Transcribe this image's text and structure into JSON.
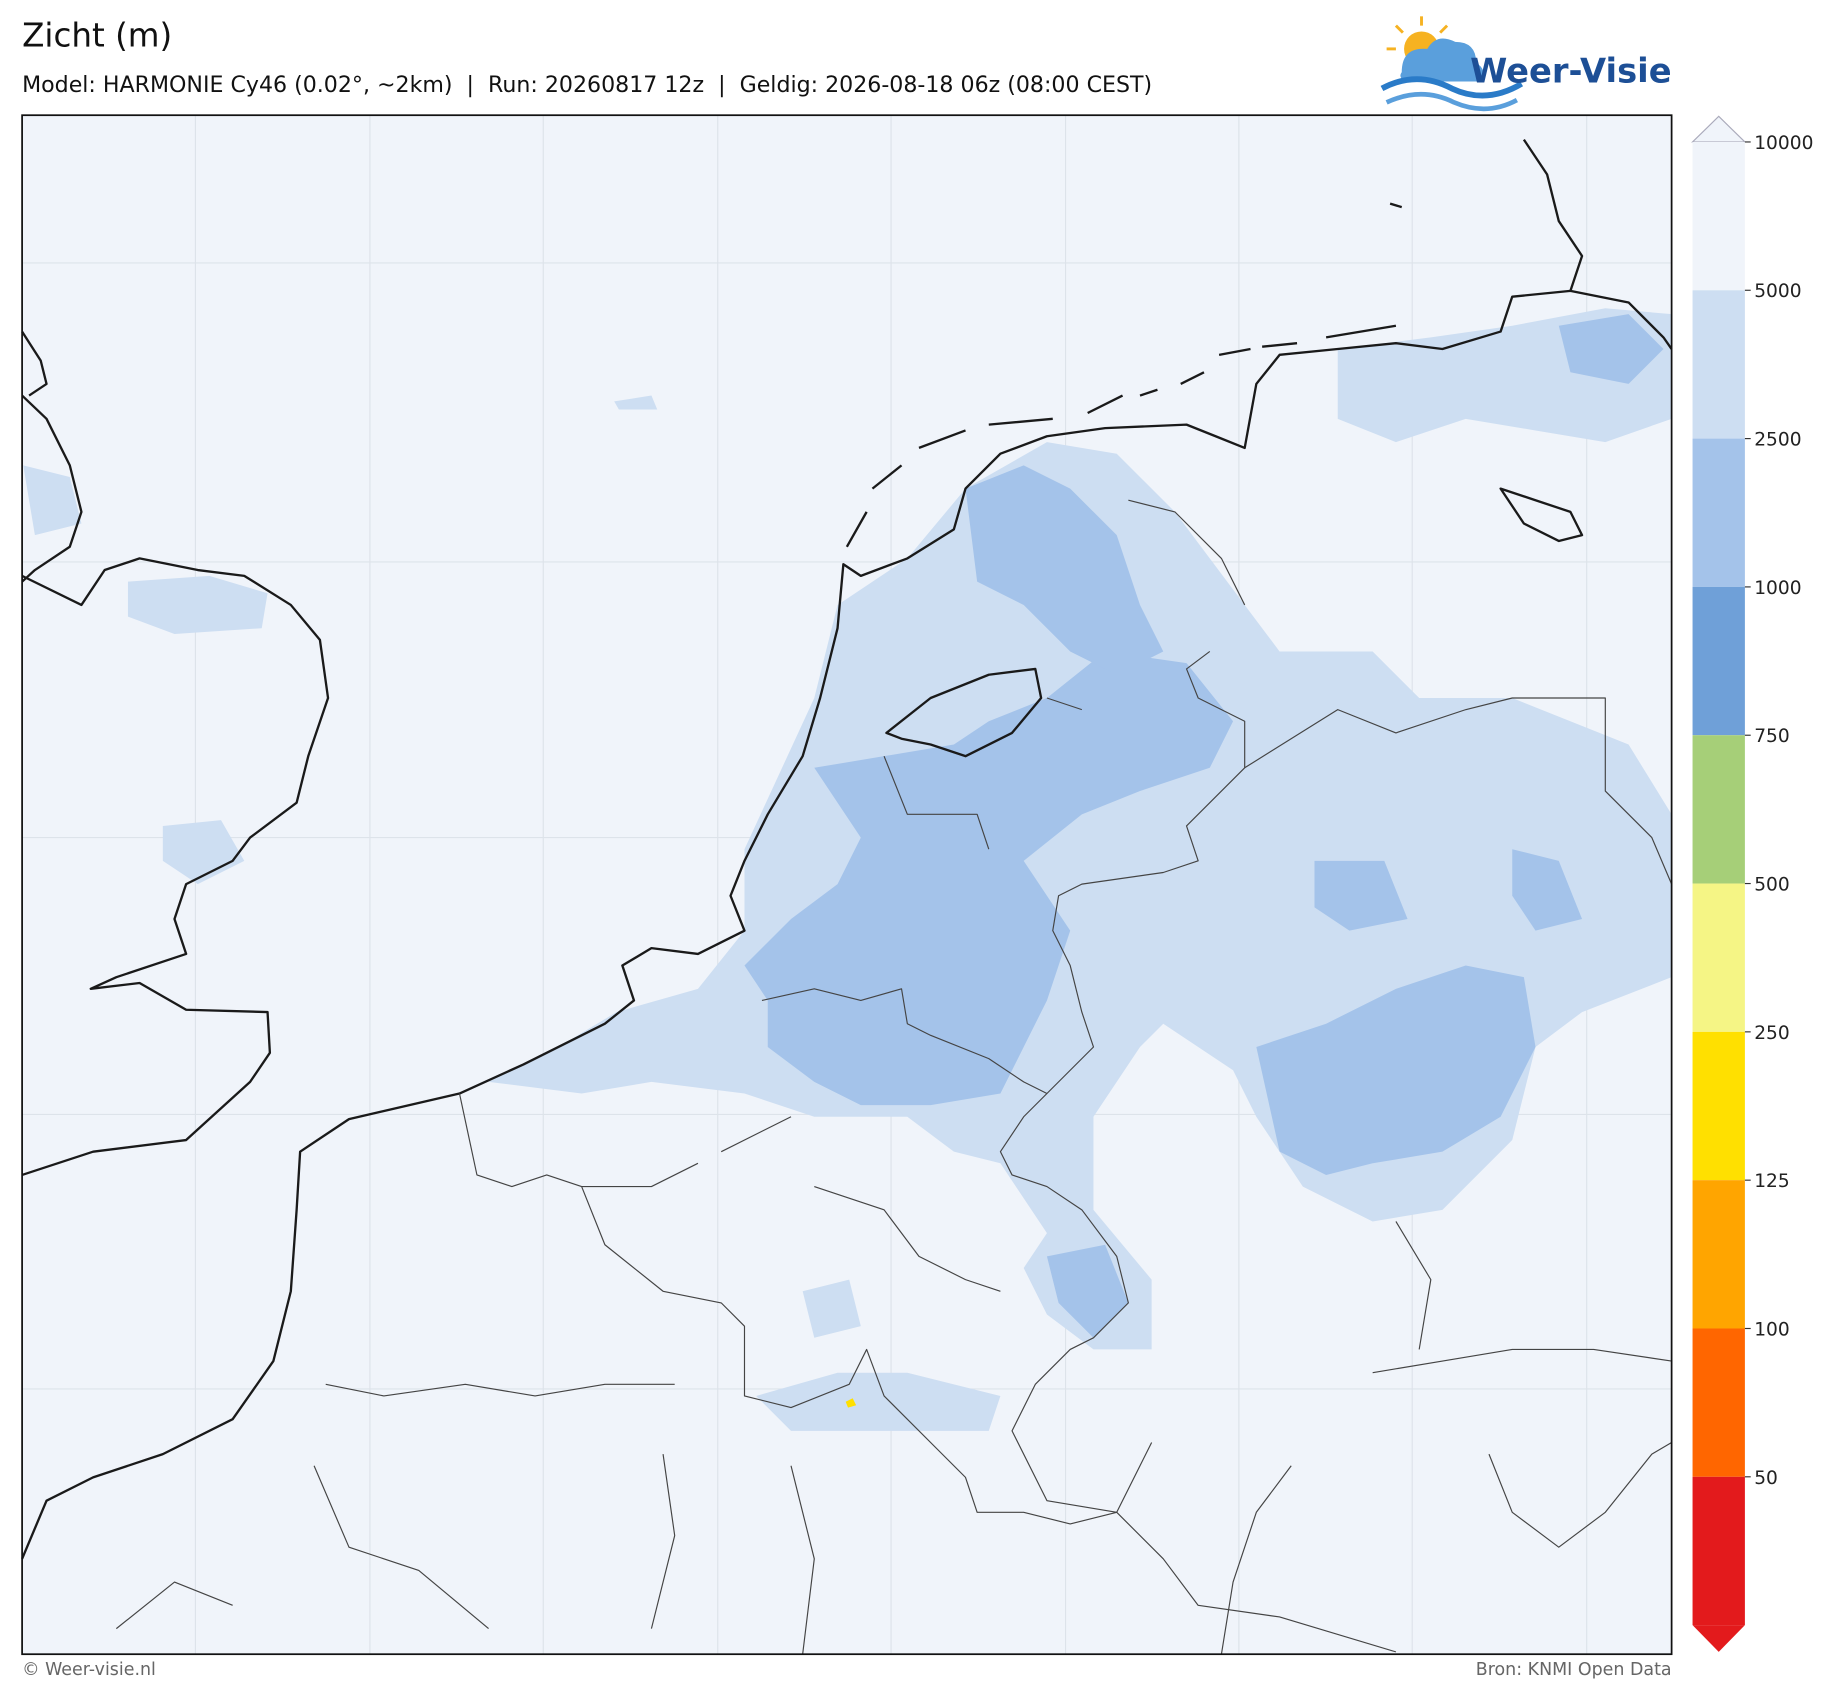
{
  "header": {
    "title": "Zicht (m)",
    "subtitle": "Model: HARMONIE Cy46 (0.02°, ~2km)  |  Run: 20260817 12z  |  Geldig: 2026-08-18 06z (08:00 CEST)"
  },
  "logo": {
    "text": "Weer-Visie"
  },
  "colorbar": {
    "ticks": [
      10000,
      5000,
      2500,
      1000,
      750,
      500,
      250,
      125,
      100,
      50
    ],
    "colors": [
      "#f0f4fa",
      "#cddef2",
      "#a4c3ea",
      "#6fa0d8",
      "#a6cf78",
      "#f5f585",
      "#ffe000",
      "#ffa500",
      "#ff6600",
      "#e31a1c"
    ],
    "over_color": "#f0f4fa",
    "under_color": "#e31a1c"
  },
  "footer": {
    "left": "© Weer-visie.nl",
    "right": "Bron: KNMI Open Data"
  }
}
